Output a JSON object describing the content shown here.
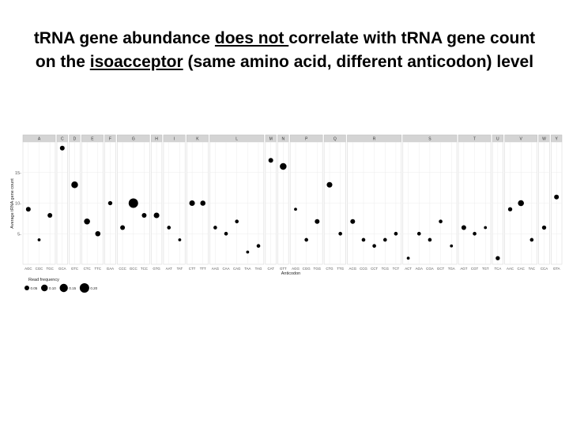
{
  "title": {
    "part1": "tRNA gene abundance ",
    "emph1": "does not ",
    "part2": "correlate with tRNA gene count on the ",
    "emph2": "isoacceptor",
    "part3": " (same amino acid, different anticodon) level"
  },
  "chart_data": {
    "type": "scatter",
    "xlabel": "Anticodon",
    "ylabel": "Average tRNA gene count",
    "ylim": [
      0,
      20
    ],
    "yticks": [
      5,
      10,
      15
    ],
    "grid": true,
    "legend": {
      "title": "Read frequency",
      "placement": "bottom-left",
      "entries": [
        {
          "label": "0.05",
          "value": 0.05
        },
        {
          "label": "0.10",
          "value": 0.1
        },
        {
          "label": "0.15",
          "value": 0.15
        },
        {
          "label": "0.20",
          "value": 0.2
        }
      ]
    },
    "facets": [
      {
        "amino_acid": "A",
        "points": [
          {
            "anticodon": "AGC",
            "y": 9,
            "freq": 0.05
          },
          {
            "anticodon": "CGC",
            "y": 4,
            "freq": 0.02
          },
          {
            "anticodon": "TGC",
            "y": 8,
            "freq": 0.05
          }
        ]
      },
      {
        "amino_acid": "C",
        "points": [
          {
            "anticodon": "GCA",
            "y": 19,
            "freq": 0.05
          }
        ]
      },
      {
        "amino_acid": "D",
        "points": [
          {
            "anticodon": "GTC",
            "y": 13,
            "freq": 0.1
          }
        ]
      },
      {
        "amino_acid": "E",
        "points": [
          {
            "anticodon": "CTC",
            "y": 7,
            "freq": 0.08
          },
          {
            "anticodon": "TTC",
            "y": 5,
            "freq": 0.06
          }
        ]
      },
      {
        "amino_acid": "F",
        "points": [
          {
            "anticodon": "GAA",
            "y": 10,
            "freq": 0.04
          }
        ]
      },
      {
        "amino_acid": "G",
        "points": [
          {
            "anticodon": "CCC",
            "y": 6,
            "freq": 0.05
          },
          {
            "anticodon": "GCC",
            "y": 10,
            "freq": 0.2
          },
          {
            "anticodon": "TCC",
            "y": 8,
            "freq": 0.05
          }
        ]
      },
      {
        "amino_acid": "H",
        "points": [
          {
            "anticodon": "GTG",
            "y": 8,
            "freq": 0.07
          }
        ]
      },
      {
        "amino_acid": "I",
        "points": [
          {
            "anticodon": "AAT",
            "y": 6,
            "freq": 0.03
          },
          {
            "anticodon": "TAT",
            "y": 4,
            "freq": 0.02
          }
        ]
      },
      {
        "amino_acid": "K",
        "points": [
          {
            "anticodon": "CTT",
            "y": 10,
            "freq": 0.07
          },
          {
            "anticodon": "TTT",
            "y": 10,
            "freq": 0.06
          }
        ]
      },
      {
        "amino_acid": "L",
        "points": [
          {
            "anticodon": "AAG",
            "y": 6,
            "freq": 0.03
          },
          {
            "anticodon": "CAA",
            "y": 5,
            "freq": 0.03
          },
          {
            "anticodon": "CAG",
            "y": 7,
            "freq": 0.03
          },
          {
            "anticodon": "TAA",
            "y": 2,
            "freq": 0.02
          },
          {
            "anticodon": "TAG",
            "y": 3,
            "freq": 0.03
          }
        ]
      },
      {
        "amino_acid": "M",
        "points": [
          {
            "anticodon": "CAT",
            "y": 17,
            "freq": 0.05
          }
        ]
      },
      {
        "amino_acid": "N",
        "points": [
          {
            "anticodon": "GTT",
            "y": 16,
            "freq": 0.1
          }
        ]
      },
      {
        "amino_acid": "P",
        "points": [
          {
            "anticodon": "AGG",
            "y": 9,
            "freq": 0.02
          },
          {
            "anticodon": "CGG",
            "y": 4,
            "freq": 0.03
          },
          {
            "anticodon": "TGG",
            "y": 7,
            "freq": 0.05
          }
        ]
      },
      {
        "amino_acid": "Q",
        "points": [
          {
            "anticodon": "CTG",
            "y": 13,
            "freq": 0.07
          },
          {
            "anticodon": "TTG",
            "y": 5,
            "freq": 0.03
          }
        ]
      },
      {
        "amino_acid": "R",
        "points": [
          {
            "anticodon": "ACG",
            "y": 7,
            "freq": 0.05
          },
          {
            "anticodon": "CCG",
            "y": 4,
            "freq": 0.03
          },
          {
            "anticodon": "CCT",
            "y": 3,
            "freq": 0.03
          },
          {
            "anticodon": "TCG",
            "y": 4,
            "freq": 0.03
          },
          {
            "anticodon": "TCT",
            "y": 5,
            "freq": 0.03
          }
        ]
      },
      {
        "amino_acid": "S",
        "points": [
          {
            "anticodon": "ACT",
            "y": 1,
            "freq": 0.02
          },
          {
            "anticodon": "AGA",
            "y": 5,
            "freq": 0.03
          },
          {
            "anticodon": "CGA",
            "y": 4,
            "freq": 0.03
          },
          {
            "anticodon": "GCT",
            "y": 7,
            "freq": 0.03
          },
          {
            "anticodon": "TGA",
            "y": 3,
            "freq": 0.02
          }
        ]
      },
      {
        "amino_acid": "T",
        "points": [
          {
            "anticodon": "AGT",
            "y": 6,
            "freq": 0.05
          },
          {
            "anticodon": "CGT",
            "y": 5,
            "freq": 0.03
          },
          {
            "anticodon": "TGT",
            "y": 6,
            "freq": 0.02
          }
        ]
      },
      {
        "amino_acid": "U",
        "points": [
          {
            "anticodon": "TCA",
            "y": 1,
            "freq": 0.04
          }
        ]
      },
      {
        "amino_acid": "V",
        "points": [
          {
            "anticodon": "AAC",
            "y": 9,
            "freq": 0.04
          },
          {
            "anticodon": "CAC",
            "y": 10,
            "freq": 0.08
          },
          {
            "anticodon": "TAC",
            "y": 4,
            "freq": 0.03
          }
        ]
      },
      {
        "amino_acid": "W",
        "points": [
          {
            "anticodon": "CCA",
            "y": 6,
            "freq": 0.04
          }
        ]
      },
      {
        "amino_acid": "Y",
        "points": [
          {
            "anticodon": "GTA",
            "y": 11,
            "freq": 0.05
          }
        ]
      }
    ]
  }
}
